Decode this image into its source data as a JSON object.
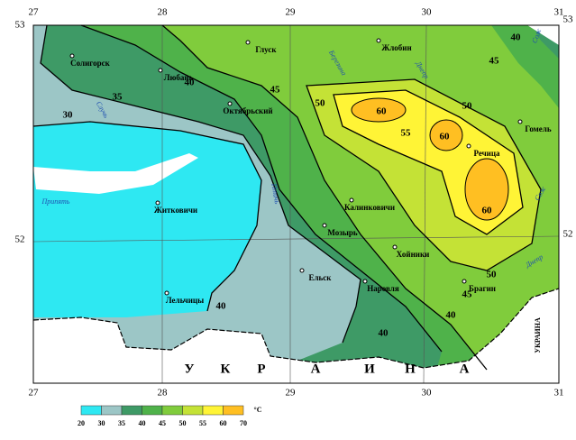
{
  "map": {
    "lon_labels_top": [
      "27",
      "28",
      "29",
      "30",
      "31"
    ],
    "lon_labels_bottom": [
      "27",
      "28",
      "29",
      "30",
      "31"
    ],
    "lat_labels_left": [
      "53",
      "52"
    ],
    "lat_labels_right": [
      "53",
      "52"
    ],
    "cities": [
      "Солигорск",
      "Любань",
      "Глуск",
      "Жлобин",
      "Октябрьский",
      "Гомель",
      "Речица",
      "Житковичи",
      "Калинковичи",
      "Мозырь",
      "Хойники",
      "Ельск",
      "Наровля",
      "Брагин",
      "Лельчицы"
    ],
    "rivers": [
      "Случь",
      "Припять",
      "Птичь",
      "Березина",
      "Днепр",
      "Сож",
      "Сож",
      "Днепр"
    ],
    "contour_labels": [
      "30",
      "35",
      "40",
      "45",
      "50",
      "55",
      "60",
      "60",
      "60",
      "50",
      "45",
      "40",
      "50",
      "45",
      "40",
      "40",
      "40"
    ],
    "country_letters": [
      "У",
      "К",
      "Р",
      "А",
      "И",
      "Н",
      "А"
    ],
    "country_vertical": "УКРАИНА",
    "legend": {
      "ticks": [
        "20",
        "30",
        "35",
        "40",
        "45",
        "50",
        "55",
        "60",
        "70"
      ],
      "colors": [
        "#2ee8f2",
        "#9cc6c6",
        "#3e9a66",
        "#4fb24a",
        "#80cc3c",
        "#c4e236",
        "#fff436",
        "#ffbf22"
      ],
      "unit": "°C"
    }
  }
}
